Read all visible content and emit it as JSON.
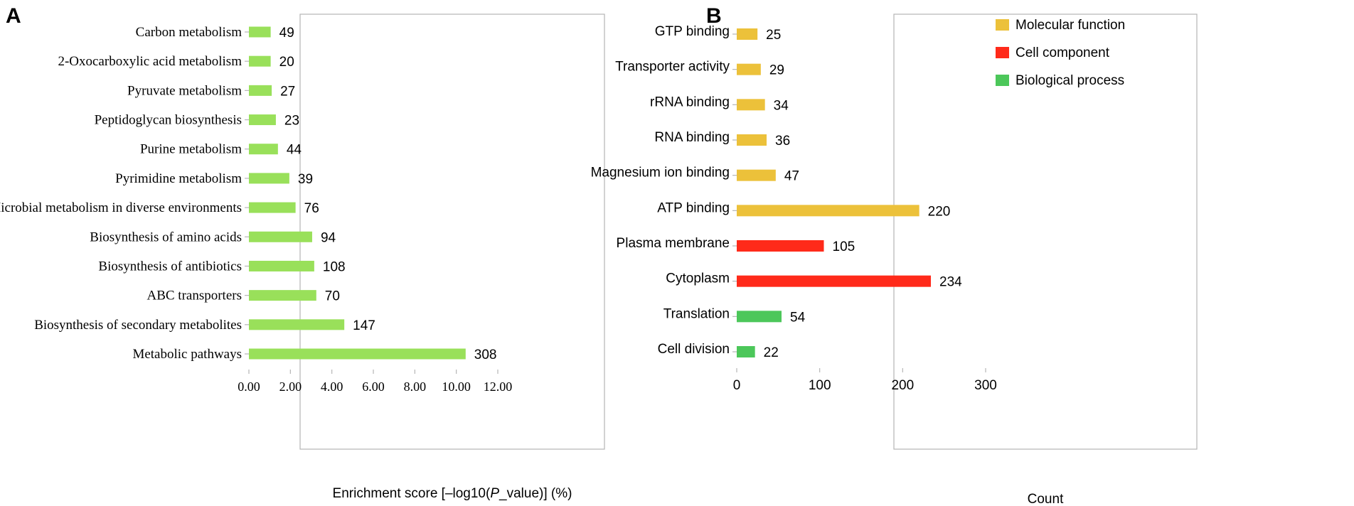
{
  "colors": {
    "kegg_bar": "#99e05a",
    "molecular_function": "#ecc13a",
    "cell_component": "#ff2a1a",
    "biological_process": "#4cc75a",
    "frame": "#b5b5b5"
  },
  "chart_data": [
    {
      "type": "bar",
      "orientation": "horizontal",
      "panel": "A",
      "categories": [
        "Carbon metabolism",
        "2-Oxocarboxylic acid metabolism",
        "Pyruvate metabolism",
        "Peptidoglycan biosynthesis",
        "Purine metabolism",
        "Pyrimidine metabolism",
        "Microbial metabolism in diverse environments",
        "Biosynthesis of amino acids",
        "Biosynthesis of antibiotics",
        "ABC transporters",
        "Biosynthesis of secondary metabolites",
        "Metabolic pathways"
      ],
      "values": [
        1.05,
        1.05,
        1.1,
        1.3,
        1.4,
        1.95,
        2.25,
        3.05,
        3.15,
        3.25,
        4.6,
        10.45
      ],
      "data_labels": [
        "49",
        "20",
        "27",
        "23",
        "44",
        "39",
        "76",
        "94",
        "108",
        "70",
        "147",
        "308"
      ],
      "xlim": [
        0,
        12
      ],
      "xticks": [
        "0.00",
        "2.00",
        "4.00",
        "6.00",
        "8.00",
        "10.00",
        "12.00"
      ],
      "xlabel_prefix": "Enrichment score  [–log10(",
      "xlabel_italic": "P",
      "xlabel_suffix": "_value)]   (%)",
      "ylabel": ""
    },
    {
      "type": "bar",
      "orientation": "horizontal",
      "panel": "B",
      "categories": [
        "GTP binding",
        "Transporter activity",
        "rRNA binding",
        "RNA binding",
        "Magnesium ion binding",
        "ATP binding",
        "Plasma membrane",
        "Cytoplasm",
        "Translation",
        "Cell division"
      ],
      "values": [
        25,
        29,
        34,
        36,
        47,
        220,
        105,
        234,
        54,
        22
      ],
      "data_labels": [
        "25",
        "29",
        "34",
        "36",
        "47",
        "220",
        "105",
        "234",
        "54",
        "22"
      ],
      "groups": [
        "molecular_function",
        "molecular_function",
        "molecular_function",
        "molecular_function",
        "molecular_function",
        "molecular_function",
        "cell_component",
        "cell_component",
        "biological_process",
        "biological_process"
      ],
      "xlim": [
        0,
        300
      ],
      "xticks": [
        "0",
        "100",
        "200",
        "300"
      ],
      "xlabel": "Count",
      "legend": [
        {
          "key": "molecular_function",
          "label": "Molecular function"
        },
        {
          "key": "cell_component",
          "label": "Cell component"
        },
        {
          "key": "biological_process",
          "label": "Biological process"
        }
      ],
      "legend_position": "top-right"
    }
  ]
}
